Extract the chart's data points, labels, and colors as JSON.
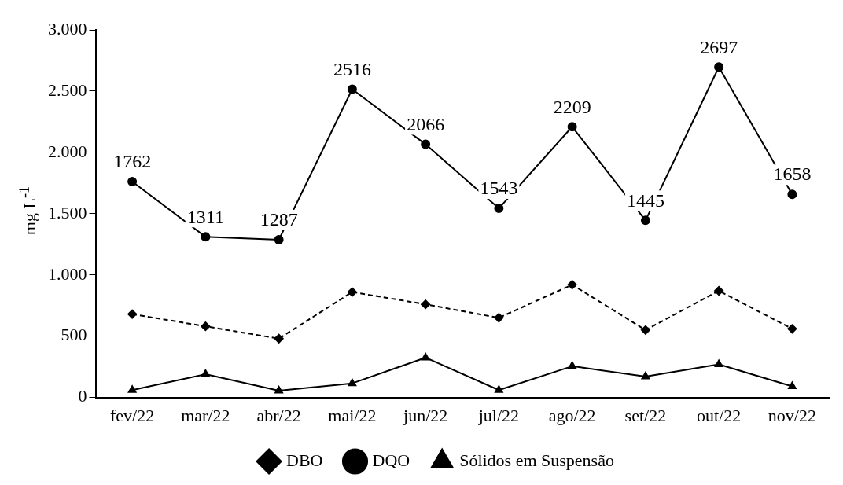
{
  "chart_data": {
    "type": "line",
    "ylabel": "mg L$^{-1}$",
    "categories": [
      "fev/22",
      "mar/22",
      "abr/22",
      "mai/22",
      "jun/22",
      "jul/22",
      "ago/22",
      "set/22",
      "out/22",
      "nov/22"
    ],
    "series": [
      {
        "name": "DBO",
        "color": "#000000",
        "marker": "diamond",
        "line_style": "dashed",
        "values": [
          680,
          580,
          480,
          860,
          760,
          650,
          920,
          550,
          870,
          560
        ]
      },
      {
        "name": "DQO",
        "color": "#000000",
        "marker": "circle",
        "line_style": "solid",
        "values": [
          1762,
          1311,
          1287,
          2516,
          2066,
          1543,
          2209,
          1445,
          2697,
          1658
        ],
        "value_labels": [
          "1762",
          "1311",
          "1287",
          "2516",
          "2066",
          "1543",
          "2209",
          "1445",
          "2697",
          "1658"
        ]
      },
      {
        "name": "Sólidos em Suspensão",
        "color": "#000000",
        "marker": "triangle",
        "line_style": "solid",
        "values": [
          60,
          190,
          55,
          115,
          325,
          60,
          255,
          170,
          270,
          90
        ]
      }
    ],
    "ylim": [
      0,
      3000
    ],
    "yticks": [
      0,
      {
        "value": 500,
        "label": "500"
      },
      {
        "value": 1000,
        "label": "1.000"
      },
      {
        "value": 1500,
        "label": "1.500"
      },
      {
        "value": 2000,
        "label": "2.000"
      },
      {
        "value": 2500,
        "label": "2.500"
      },
      {
        "value": 3000,
        "label": "3.000"
      }
    ],
    "grid": false,
    "legend": "bottom"
  }
}
